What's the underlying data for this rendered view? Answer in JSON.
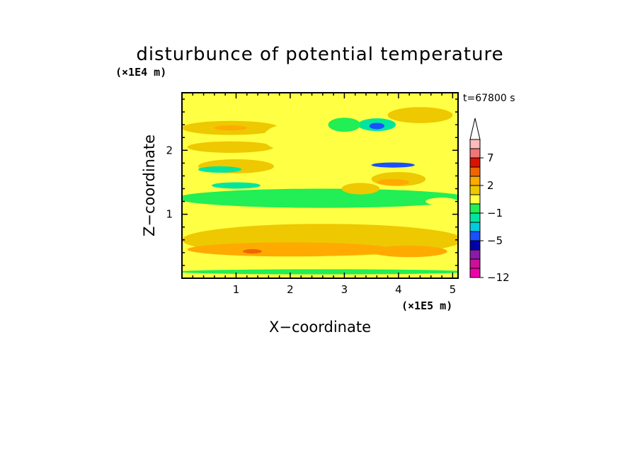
{
  "chart_data": {
    "type": "heatmap",
    "title": "disturbunce of potential temperature",
    "xlabel": "X−coordinate",
    "ylabel": "Z−coordinate",
    "x_unit": "(×1E5 m)",
    "y_unit": "(×1E4 m)",
    "time_label": "t=67800 s",
    "xlim": [
      0,
      5.1
    ],
    "ylim": [
      0,
      2.9
    ],
    "x_ticks": [
      1,
      2,
      3,
      4,
      5
    ],
    "y_ticks": [
      1,
      2
    ],
    "colorbar": {
      "boundaries": [
        -12,
        -10,
        -8,
        -7,
        -5,
        -3,
        -2,
        -1,
        0,
        1,
        2,
        3,
        5,
        7,
        8,
        10
      ],
      "colors": [
        "#ee00aa",
        "#cc1199",
        "#8a1aaa",
        "#0000aa",
        "#1a50ff",
        "#00ccdd",
        "#00e6a0",
        "#22ee55",
        "#ffff44",
        "#eec800",
        "#ffaa00",
        "#ee6600",
        "#dd1100",
        "#ee7777",
        "#ffbbbb"
      ],
      "labels": [
        "7",
        "2",
        "−1",
        "−5",
        "−12"
      ],
      "label_values": [
        7,
        2,
        -1,
        -5,
        -12
      ],
      "extend": "max"
    },
    "field": {
      "background_value": 0.5,
      "features": [
        {
          "x": 2.6,
          "y": 0.1,
          "w": 5.4,
          "h": 0.08,
          "value": -0.5
        },
        {
          "x": 2.6,
          "y": 0.6,
          "w": 5.2,
          "h": 0.5,
          "value": 1.5
        },
        {
          "x": 2.0,
          "y": 0.45,
          "w": 3.8,
          "h": 0.22,
          "value": 2.5
        },
        {
          "x": 4.2,
          "y": 0.42,
          "w": 1.4,
          "h": 0.18,
          "value": 2.5
        },
        {
          "x": 1.3,
          "y": 0.42,
          "w": 0.35,
          "h": 0.07,
          "value": 3.5
        },
        {
          "x": 2.6,
          "y": 1.25,
          "w": 5.4,
          "h": 0.3,
          "value": -0.5
        },
        {
          "x": 1.0,
          "y": 1.45,
          "w": 0.9,
          "h": 0.1,
          "value": -1.5
        },
        {
          "x": 1.0,
          "y": 1.75,
          "w": 1.4,
          "h": 0.22,
          "value": 1.5
        },
        {
          "x": 2.6,
          "y": 1.55,
          "w": 1.2,
          "h": 0.3,
          "value": 0.5
        },
        {
          "x": 3.3,
          "y": 1.4,
          "w": 0.7,
          "h": 0.18,
          "value": 1.5
        },
        {
          "x": 4.0,
          "y": 1.55,
          "w": 1.0,
          "h": 0.22,
          "value": 1.5
        },
        {
          "x": 3.9,
          "y": 1.5,
          "w": 0.6,
          "h": 0.1,
          "value": 2.5
        },
        {
          "x": 3.9,
          "y": 1.77,
          "w": 0.8,
          "h": 0.08,
          "value": -3.5
        },
        {
          "x": 0.9,
          "y": 2.05,
          "w": 1.6,
          "h": 0.18,
          "value": 1.5
        },
        {
          "x": 0.9,
          "y": 2.35,
          "w": 1.8,
          "h": 0.22,
          "value": 1.5
        },
        {
          "x": 0.9,
          "y": 2.35,
          "w": 0.6,
          "h": 0.08,
          "value": 2.5
        },
        {
          "x": 2.1,
          "y": 2.2,
          "w": 1.2,
          "h": 0.45,
          "value": 0.5
        },
        {
          "x": 2.9,
          "y": 2.0,
          "w": 0.9,
          "h": 0.2,
          "value": 0.5
        },
        {
          "x": 3.6,
          "y": 2.4,
          "w": 0.7,
          "h": 0.2,
          "value": -1.5
        },
        {
          "x": 3.6,
          "y": 2.38,
          "w": 0.28,
          "h": 0.1,
          "value": -3.5
        },
        {
          "x": 3.0,
          "y": 2.4,
          "w": 0.6,
          "h": 0.22,
          "value": -0.5
        },
        {
          "x": 4.6,
          "y": 2.2,
          "w": 1.0,
          "h": 0.4,
          "value": 0.5
        },
        {
          "x": 4.4,
          "y": 2.55,
          "w": 1.2,
          "h": 0.25,
          "value": 1.5
        },
        {
          "x": 2.0,
          "y": 2.7,
          "w": 1.4,
          "h": 0.2,
          "value": 0.5
        },
        {
          "x": 0.7,
          "y": 1.7,
          "w": 0.8,
          "h": 0.1,
          "value": -1.5
        },
        {
          "x": 4.8,
          "y": 1.2,
          "w": 0.6,
          "h": 0.12,
          "value": 0.5
        }
      ]
    }
  }
}
